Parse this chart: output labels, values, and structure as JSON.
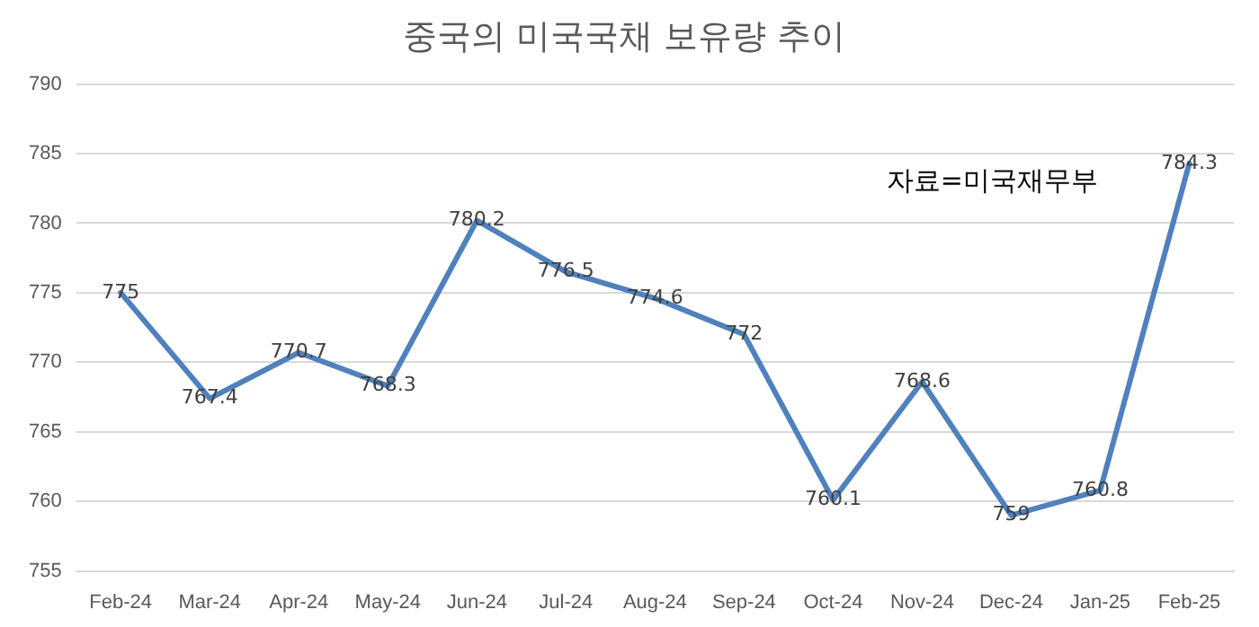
{
  "chart_data": {
    "type": "line",
    "title": "중국의 미국국채 보유량 추이",
    "categories": [
      "Feb-24",
      "Mar-24",
      "Apr-24",
      "May-24",
      "Jun-24",
      "Jul-24",
      "Aug-24",
      "Sep-24",
      "Oct-24",
      "Nov-24",
      "Dec-24",
      "Jan-25",
      "Feb-25"
    ],
    "series": [
      {
        "color": "#4f81bd",
        "values": [
          775,
          767.4,
          770.7,
          768.3,
          780.2,
          776.5,
          774.6,
          772,
          760.1,
          768.6,
          759,
          760.8,
          784.3
        ]
      }
    ],
    "ylim": [
      755,
      790
    ],
    "yticks": [
      755,
      760,
      765,
      770,
      775,
      780,
      785,
      790
    ],
    "grid": "y",
    "data_labels": true,
    "marker": "none",
    "line_style": "solid",
    "legend": false,
    "annotations": [
      "자료=미국재무부"
    ]
  }
}
